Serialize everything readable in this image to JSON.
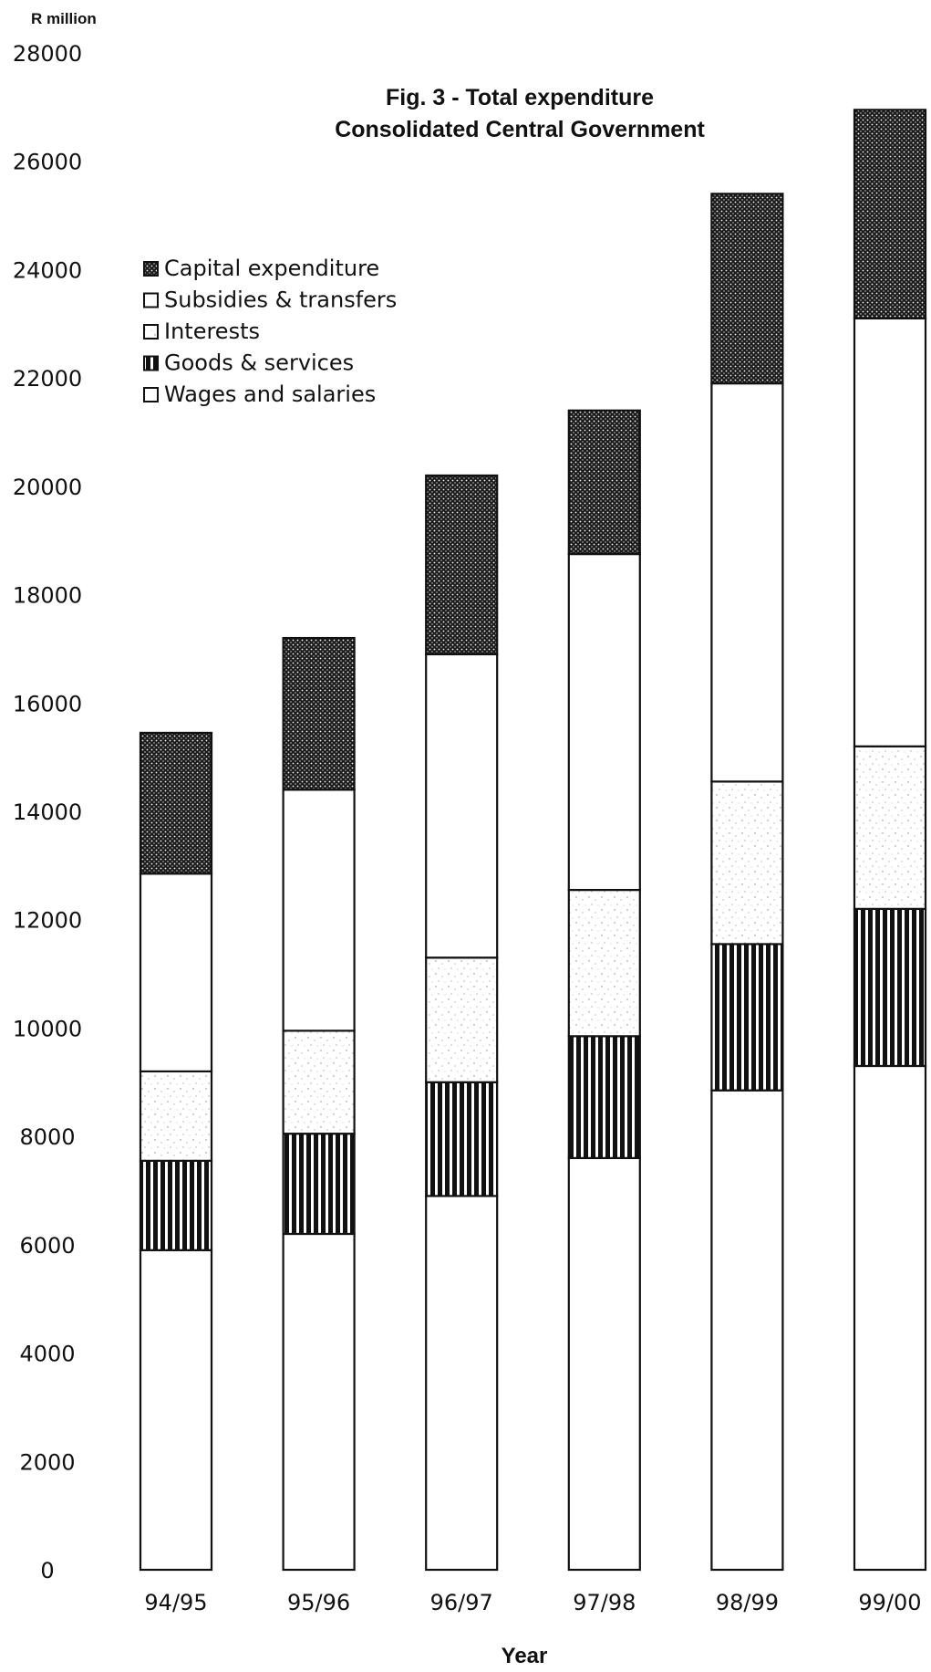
{
  "chart_data": {
    "type": "bar",
    "stacked": true,
    "title": [
      "Fig. 3 - Total expenditure",
      "Consolidated Central Government"
    ],
    "ylabel": "R million",
    "xlabel": "Year",
    "ylim": [
      0,
      28000
    ],
    "yticks": [
      0,
      2000,
      4000,
      6000,
      8000,
      10000,
      12000,
      14000,
      16000,
      18000,
      20000,
      22000,
      24000,
      26000,
      28000
    ],
    "categories": [
      "94/95",
      "95/96",
      "96/97",
      "97/98",
      "98/99",
      "99/00"
    ],
    "legend_position": "top-left",
    "grid": false,
    "series": [
      {
        "name": "Wages and salaries",
        "pattern": "plain",
        "values": [
          5900,
          6200,
          6900,
          7600,
          8850,
          9300
        ]
      },
      {
        "name": "Goods & services",
        "pattern": "vertical-stripes",
        "values": [
          1650,
          1850,
          2100,
          2250,
          2700,
          2900
        ]
      },
      {
        "name": "Interests",
        "pattern": "light-speckle",
        "values": [
          1650,
          1900,
          2300,
          2700,
          3000,
          3000
        ]
      },
      {
        "name": "Subsidies & transfers",
        "pattern": "plain",
        "values": [
          3650,
          4450,
          5600,
          6200,
          7350,
          7900
        ]
      },
      {
        "name": "Capital expenditure",
        "pattern": "dark-dots",
        "values": [
          2600,
          2800,
          3300,
          2650,
          3500,
          3850
        ]
      }
    ],
    "legend_order": [
      "Capital expenditure",
      "Subsidies & transfers",
      "Interests",
      "Goods & services",
      "Wages and salaries"
    ]
  }
}
